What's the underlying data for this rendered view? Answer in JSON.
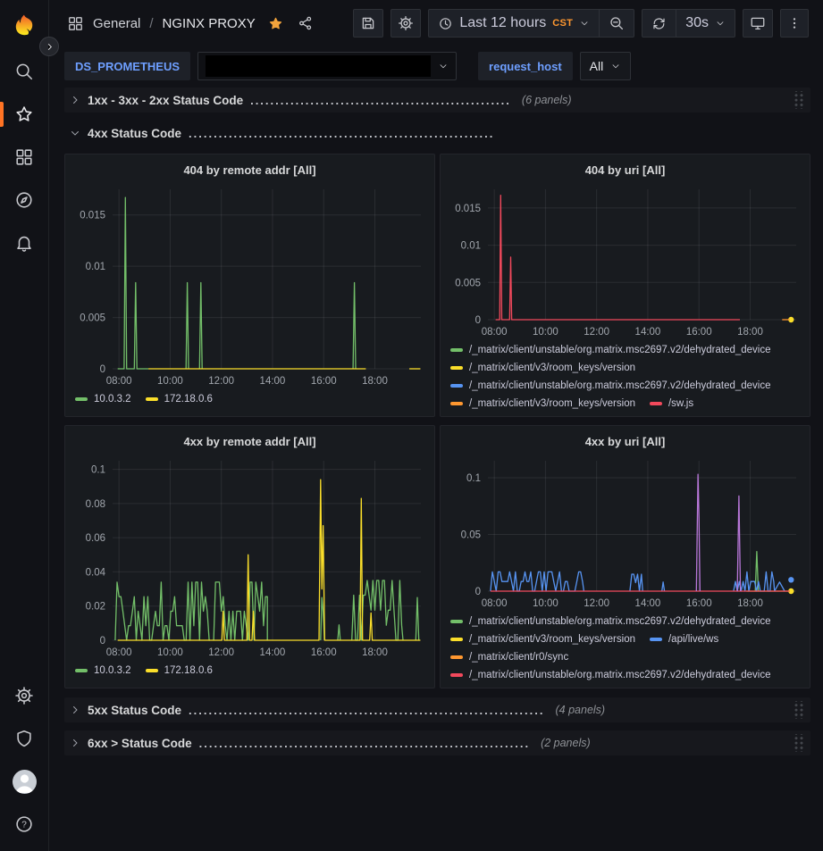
{
  "theme": {
    "background": "#111217",
    "panel_background": "#181b1f",
    "link_blue": "#6e9fff",
    "accent_orange": "#ff9830",
    "favorite_star": "#f2a33c",
    "series_colors": {
      "green": "#73bf69",
      "yellow": "#fade2a",
      "blue": "#5794f2",
      "orange": "#ff9830",
      "red": "#f2495c",
      "purple": "#b877d9"
    }
  },
  "header": {
    "breadcrumb_section": "General",
    "breadcrumb_sep": "/",
    "breadcrumb_title": "NGINX PROXY",
    "time_range": "Last 12 hours",
    "timezone": "CST",
    "refresh_interval": "30s"
  },
  "sidebar": {
    "items": [
      "grafana-logo",
      "search-icon",
      "starred-icon",
      "dashboards-icon",
      "explore-compass-icon",
      "alerting-bell-icon"
    ],
    "bottom_items": [
      "configuration-gear-icon",
      "server-admin-shield-icon",
      "user-avatar",
      "help-icon"
    ],
    "active_item": "starred-icon"
  },
  "variables": {
    "datasource_label": "DS_PROMETHEUS",
    "datasource_value": "",
    "request_host_label": "request_host",
    "request_host_value": "All"
  },
  "rows": [
    {
      "collapsed": true,
      "title": "1xx - 3xx - 2xx Status Code",
      "leader": "....................................................",
      "count": "(6 panels)"
    },
    {
      "collapsed": false,
      "title": "4xx Status Code",
      "leader": ".............................................................",
      "count": ""
    },
    {
      "collapsed": true,
      "title": "5xx Status Code",
      "leader": ".......................................................................",
      "count": "(4 panels)"
    },
    {
      "collapsed": true,
      "title": "6xx > Status Code",
      "leader": "..................................................................",
      "count": "(2 panels)"
    }
  ],
  "chart_data": [
    {
      "type": "line",
      "title": "404 by remote addr [All]",
      "x_range": [
        7.75,
        19.8
      ],
      "y_max": 0.0175,
      "y_ticks": [
        {
          "v": 0,
          "label": "0"
        },
        {
          "v": 0.005,
          "label": "0.005"
        },
        {
          "v": 0.01,
          "label": "0.01"
        },
        {
          "v": 0.015,
          "label": "0.015"
        }
      ],
      "x_ticks": [
        {
          "v": 8,
          "label": "08:00"
        },
        {
          "v": 10,
          "label": "10:00"
        },
        {
          "v": 12,
          "label": "12:00"
        },
        {
          "v": 14,
          "label": "14:00"
        },
        {
          "v": 16,
          "label": "16:00"
        },
        {
          "v": 18,
          "label": "18:00"
        }
      ],
      "legend_position": "bottom-inline",
      "series": [
        {
          "name": "10.0.3.2",
          "color": "#73bf69",
          "segments": [
            {
              "kind": "path",
              "points": [
                [
                  7.95,
                  0
                ],
                [
                  8.2,
                  0
                ],
                [
                  8.25,
                  0.0167
                ],
                [
                  8.3,
                  0
                ],
                [
                  8.6,
                  0
                ],
                [
                  8.65,
                  0.0084
                ],
                [
                  8.7,
                  0
                ],
                [
                  9.15,
                  0
                ]
              ]
            },
            {
              "kind": "path",
              "points": [
                [
                  10.62,
                  0
                ],
                [
                  10.67,
                  0.0084
                ],
                [
                  10.72,
                  0
                ]
              ]
            },
            {
              "kind": "path",
              "points": [
                [
                  11.15,
                  0
                ],
                [
                  11.2,
                  0.0084
                ],
                [
                  11.25,
                  0
                ]
              ]
            },
            {
              "kind": "path",
              "points": [
                [
                  17.15,
                  0
                ],
                [
                  17.2,
                  0.0084
                ],
                [
                  17.25,
                  0
                ]
              ]
            }
          ]
        },
        {
          "name": "172.18.0.6",
          "color": "#fade2a",
          "segments": [
            {
              "kind": "path",
              "points": [
                [
                  9.15,
                  0
                ],
                [
                  17.65,
                  0
                ]
              ]
            },
            {
              "kind": "path",
              "points": [
                [
                  19.35,
                  0
                ],
                [
                  19.78,
                  0
                ]
              ]
            }
          ]
        }
      ]
    },
    {
      "type": "line",
      "title": "404 by uri [All]",
      "x_range": [
        7.75,
        19.8
      ],
      "y_max": 0.0175,
      "y_ticks": [
        {
          "v": 0,
          "label": "0"
        },
        {
          "v": 0.005,
          "label": "0.005"
        },
        {
          "v": 0.01,
          "label": "0.01"
        },
        {
          "v": 0.015,
          "label": "0.015"
        }
      ],
      "x_ticks": [
        {
          "v": 8,
          "label": "08:00"
        },
        {
          "v": 10,
          "label": "10:00"
        },
        {
          "v": 12,
          "label": "12:00"
        },
        {
          "v": 14,
          "label": "14:00"
        },
        {
          "v": 16,
          "label": "16:00"
        },
        {
          "v": 18,
          "label": "18:00"
        }
      ],
      "legend_position": "bottom-wrap-clipped",
      "series": [
        {
          "name": "/_matrix/client/unstable/org.matrix.msc2697.v2/dehydrated_device",
          "color": "#73bf69",
          "segments": []
        },
        {
          "name": "/_matrix/client/v3/room_keys/version",
          "color": "#fade2a",
          "segments": [],
          "points": [
            [
              19.6,
              0
            ]
          ]
        },
        {
          "name": "/_matrix/client/unstable/org.matrix.msc2697.v2/dehydrated_device",
          "color": "#5794f2",
          "segments": []
        },
        {
          "name": "/_matrix/client/v3/room_keys/version",
          "color": "#ff9830",
          "segments": [
            {
              "kind": "path",
              "points": [
                [
                  19.25,
                  0
                ],
                [
                  19.55,
                  0
                ]
              ]
            }
          ]
        },
        {
          "name": "/sw.js",
          "color": "#f2495c",
          "segments": [
            {
              "kind": "path",
              "points": [
                [
                  8.05,
                  0
                ],
                [
                  8.21,
                  0
                ],
                [
                  8.25,
                  0.0167
                ],
                [
                  8.29,
                  0
                ],
                [
                  8.6,
                  0
                ],
                [
                  8.64,
                  0.0084
                ],
                [
                  8.68,
                  0
                ],
                [
                  17.6,
                  0
                ]
              ]
            }
          ]
        }
      ]
    },
    {
      "type": "line",
      "title": "4xx by remote addr [All]",
      "x_range": [
        7.75,
        19.8
      ],
      "y_max": 0.105,
      "y_ticks": [
        {
          "v": 0,
          "label": "0"
        },
        {
          "v": 0.02,
          "label": "0.02"
        },
        {
          "v": 0.04,
          "label": "0.04"
        },
        {
          "v": 0.06,
          "label": "0.06"
        },
        {
          "v": 0.08,
          "label": "0.08"
        },
        {
          "v": 0.1,
          "label": "0.1"
        }
      ],
      "x_ticks": [
        {
          "v": 8,
          "label": "08:00"
        },
        {
          "v": 10,
          "label": "10:00"
        },
        {
          "v": 12,
          "label": "12:00"
        },
        {
          "v": 14,
          "label": "14:00"
        },
        {
          "v": 16,
          "label": "16:00"
        },
        {
          "v": 18,
          "label": "18:00"
        }
      ],
      "legend_position": "bottom-inline",
      "series": [
        {
          "name": "10.0.3.2",
          "color": "#73bf69",
          "segments": [
            {
              "kind": "noise",
              "from": 7.85,
              "to": 11.55,
              "quant": 0.0085,
              "levels": 4,
              "max": 0.034,
              "seed": 3,
              "step": 0.075
            },
            {
              "kind": "noise",
              "from": 11.7,
              "to": 13.8,
              "quant": 0.0085,
              "levels": 4,
              "max": 0.034,
              "seed": 7,
              "step": 0.075
            },
            {
              "kind": "path",
              "points": [
                [
                  15.88,
                  0
                ],
                [
                  15.93,
                  0.025
                ],
                [
                  15.98,
                  0.017
                ],
                [
                  16.03,
                  0
                ]
              ]
            },
            {
              "kind": "path",
              "points": [
                [
                  16.55,
                  0
                ],
                [
                  16.6,
                  0.009
                ],
                [
                  16.65,
                  0
                ]
              ]
            },
            {
              "kind": "noise",
              "from": 17.1,
              "to": 19.1,
              "quant": 0.0088,
              "levels": 4,
              "max": 0.035,
              "seed": 11,
              "step": 0.075
            },
            {
              "kind": "path",
              "points": [
                [
                  19.6,
                  0
                ],
                [
                  19.66,
                  0.025
                ],
                [
                  19.72,
                  0
                ]
              ]
            }
          ]
        },
        {
          "name": "172.18.0.6",
          "color": "#fade2a",
          "segments": [
            {
              "kind": "path",
              "points": [
                [
                  7.95,
                  0
                ],
                [
                  12.02,
                  0
                ],
                [
                  12.07,
                  0.017
                ],
                [
                  12.12,
                  0
                ],
                [
                  13.0,
                  0
                ],
                [
                  13.05,
                  0.05
                ],
                [
                  13.1,
                  0
                ],
                [
                  13.2,
                  0
                ],
                [
                  13.25,
                  0.017
                ],
                [
                  13.3,
                  0
                ],
                [
                  15.82,
                  0
                ],
                [
                  15.88,
                  0.094
                ],
                [
                  15.93,
                  0.03
                ],
                [
                  15.98,
                  0.067
                ],
                [
                  16.04,
                  0
                ],
                [
                  17.42,
                  0
                ],
                [
                  17.47,
                  0.083
                ],
                [
                  17.52,
                  0
                ],
                [
                  17.8,
                  0
                ],
                [
                  17.85,
                  0.016
                ],
                [
                  17.9,
                  0
                ],
                [
                  19.78,
                  0
                ]
              ]
            }
          ]
        }
      ]
    },
    {
      "type": "line",
      "title": "4xx by uri [All]",
      "x_range": [
        7.75,
        19.8
      ],
      "y_max": 0.115,
      "y_ticks": [
        {
          "v": 0,
          "label": "0"
        },
        {
          "v": 0.05,
          "label": "0.05"
        },
        {
          "v": 0.1,
          "label": "0.1"
        }
      ],
      "x_ticks": [
        {
          "v": 8,
          "label": "08:00"
        },
        {
          "v": 10,
          "label": "10:00"
        },
        {
          "v": 12,
          "label": "12:00"
        },
        {
          "v": 14,
          "label": "14:00"
        },
        {
          "v": 16,
          "label": "16:00"
        },
        {
          "v": 18,
          "label": "18:00"
        }
      ],
      "legend_position": "bottom-wrap-clipped",
      "series": [
        {
          "name": "/_matrix/client/unstable/org.matrix.msc2697.v2/dehydrated_device",
          "color": "#73bf69",
          "segments": [
            {
              "kind": "path",
              "points": [
                [
                  18.2,
                  0
                ],
                [
                  18.26,
                  0.035
                ],
                [
                  18.32,
                  0
                ]
              ]
            }
          ]
        },
        {
          "name": "/_matrix/client/v3/room_keys/version",
          "color": "#fade2a",
          "segments": [
            {
              "kind": "path",
              "points": [
                [
                  17.85,
                  0
                ],
                [
                  19.6,
                  0
                ]
              ]
            }
          ],
          "points": [
            [
              19.6,
              0
            ]
          ]
        },
        {
          "name": "/api/live/ws",
          "color": "#5794f2",
          "segments": [
            {
              "kind": "noise",
              "from": 7.85,
              "to": 11.5,
              "quant": 0.0085,
              "levels": 2,
              "max": 0.017,
              "seed": 5,
              "step": 0.075
            },
            {
              "kind": "noise",
              "from": 13.3,
              "to": 13.8,
              "quant": 0.0075,
              "levels": 2,
              "max": 0.015,
              "seed": 9,
              "step": 0.075
            },
            {
              "kind": "path",
              "points": [
                [
                  14.55,
                  0
                ],
                [
                  14.6,
                  0.008
                ],
                [
                  14.65,
                  0
                ]
              ]
            },
            {
              "kind": "noise",
              "from": 17.35,
              "to": 18.95,
              "quant": 0.0085,
              "levels": 2,
              "max": 0.017,
              "seed": 13,
              "step": 0.075
            },
            {
              "kind": "path",
              "points": [
                [
                  18.95,
                  0
                ],
                [
                  19.15,
                  0.008
                ],
                [
                  19.35,
                  0
                ]
              ]
            }
          ],
          "points": [
            [
              19.6,
              0.01
            ]
          ]
        },
        {
          "name": "/_matrix/client/r0/sync",
          "color": "#ff9830",
          "segments": []
        },
        {
          "name": "/_matrix/client/unstable/org.matrix.msc2697.v2/dehydrated_device",
          "color": "#f2495c",
          "segments": [
            {
              "kind": "path",
              "points": [
                [
                  7.85,
                  0
                ],
                [
                  19.55,
                  0
                ]
              ]
            }
          ]
        },
        {
          "name": "",
          "color": "#b877d9",
          "in_legend": false,
          "segments": [
            {
              "kind": "path",
              "points": [
                [
                  15.9,
                  0
                ],
                [
                  15.96,
                  0.103
                ],
                [
                  16.0,
                  0.065
                ],
                [
                  16.04,
                  0
                ]
              ]
            },
            {
              "kind": "path",
              "points": [
                [
                  17.5,
                  0
                ],
                [
                  17.56,
                  0.084
                ],
                [
                  17.62,
                  0
                ]
              ]
            }
          ]
        }
      ]
    }
  ]
}
